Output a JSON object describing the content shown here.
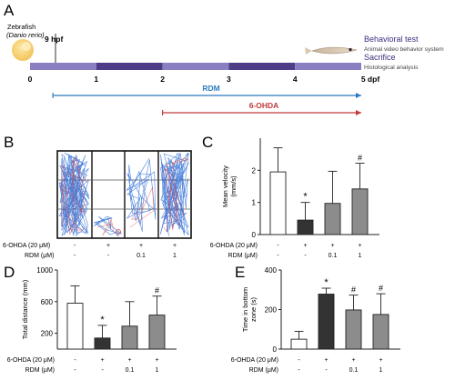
{
  "panels": {
    "A": "A",
    "B": "B",
    "C": "C",
    "D": "D",
    "E": "E"
  },
  "timeline": {
    "zebrafish_label": "Zebrafish",
    "species_label": "(Danio rerio)",
    "hpf_label": "9 hpf",
    "day_ticks": [
      "0",
      "1",
      "2",
      "3",
      "4",
      "5 dpf"
    ],
    "behavioral_test": "Behavioral test",
    "behavior_system": "Animal video behavior system",
    "sacrifice": "Sacrifice",
    "histology": "Histological analysis",
    "rdm_label": "RDM",
    "ohda_label": "6-OHDA",
    "rdm_span_days": [
      0.4,
      5
    ],
    "ohda_span_days": [
      2,
      5
    ],
    "colors": {
      "bar_light": "#8a7fc2",
      "bar_dark": "#4e3d86",
      "rdm": "#2b7bbf",
      "ohda": "#c0393b",
      "egg": "#f6cd6a"
    }
  },
  "treatment_labels": {
    "ohda": "6-OHDA (20 μM)",
    "rdm": "RDM (μM)",
    "ohda_marks": [
      "-",
      "+",
      "+",
      "+"
    ],
    "rdm_marks": [
      "-",
      "-",
      "0.1",
      "1"
    ]
  },
  "track_colors": {
    "primary": "#2f6fd6",
    "secondary": "#e23a3a"
  },
  "chart_data": [
    {
      "panel": "C",
      "type": "bar",
      "title": "",
      "ylabel": "Mean velocity\n(mm/s)",
      "ylim": [
        0,
        3
      ],
      "yticks": [
        0,
        1,
        2
      ],
      "categories": [
        "Control",
        "6-OHDA",
        "6-OHDA + RDM 0.1",
        "6-OHDA + RDM 1"
      ],
      "values": [
        1.95,
        0.45,
        0.97,
        1.42
      ],
      "errors": [
        0.75,
        0.55,
        1.0,
        0.8
      ],
      "significance": [
        "",
        "*",
        "",
        "#"
      ],
      "colors": [
        "#ffffff",
        "#333333",
        "#8c8c8c",
        "#8c8c8c"
      ]
    },
    {
      "panel": "D",
      "type": "bar",
      "title": "",
      "ylabel": "Total distance (mm)",
      "ylim": [
        0,
        1000
      ],
      "yticks": [
        200,
        600,
        1000
      ],
      "categories": [
        "Control",
        "6-OHDA",
        "6-OHDA + RDM 0.1",
        "6-OHDA + RDM 1"
      ],
      "values": [
        580,
        140,
        290,
        430
      ],
      "errors": [
        220,
        160,
        310,
        240
      ],
      "significance": [
        "",
        "*",
        "",
        "#"
      ],
      "colors": [
        "#ffffff",
        "#333333",
        "#8c8c8c",
        "#8c8c8c"
      ]
    },
    {
      "panel": "E",
      "type": "bar",
      "title": "",
      "ylabel": "Time in bottom\nzone (s)",
      "ylim": [
        0,
        400
      ],
      "yticks": [
        0,
        200,
        400
      ],
      "categories": [
        "Control",
        "6-OHDA",
        "6-OHDA + RDM 0.1",
        "6-OHDA + RDM 1"
      ],
      "values": [
        50,
        278,
        198,
        175
      ],
      "errors": [
        40,
        30,
        75,
        105
      ],
      "significance": [
        "",
        "*",
        "#",
        "#"
      ],
      "colors": [
        "#ffffff",
        "#333333",
        "#8c8c8c",
        "#8c8c8c"
      ]
    }
  ]
}
